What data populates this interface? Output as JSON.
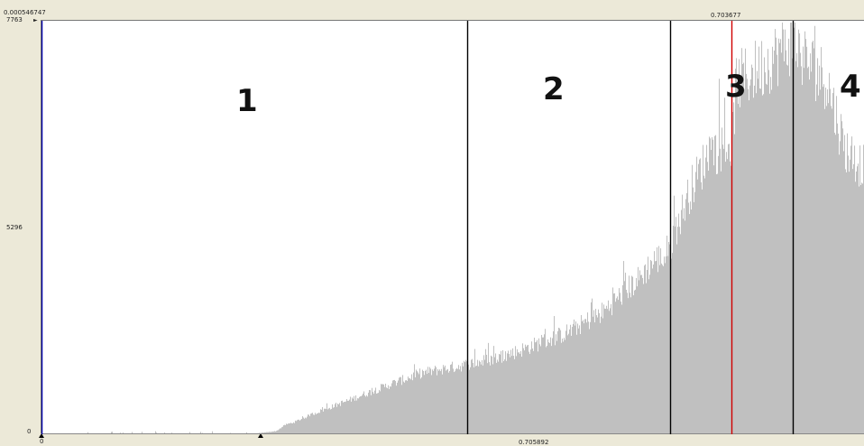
{
  "top_left_value": "0.000546747",
  "top_threshold_value": "0.703677",
  "bottom_center_value": "0.705892",
  "chart_data": {
    "type": "bar",
    "y_ticks": [
      "7763",
      "5296",
      "0"
    ],
    "y_tick_values": [
      7763,
      5296,
      0
    ],
    "x_tick_labels": [
      "0"
    ],
    "ylim": [
      0,
      7763
    ],
    "x_bin_count": 913,
    "grid": false,
    "bar_color": "#c0c0c0",
    "region_labels": [
      "1",
      "2",
      "3",
      "4"
    ],
    "histogram_profile": {
      "description_units": "bin index (0-912) and count",
      "bins": [
        0,
        40,
        80,
        120,
        160,
        200,
        230,
        260,
        270,
        280,
        300,
        340,
        380,
        420,
        470,
        500,
        530,
        580,
        620,
        660,
        680,
        695,
        700,
        720,
        740,
        765,
        770,
        800,
        830,
        850,
        870,
        890,
        913
      ],
      "counts": [
        0,
        0,
        0,
        0,
        0,
        0,
        0,
        60,
        180,
        230,
        380,
        640,
        900,
        1150,
        1310,
        1420,
        1580,
        1900,
        2280,
        2900,
        3300,
        3350,
        3750,
        4650,
        5300,
        5520,
        6620,
        6950,
        7400,
        7000,
        6700,
        5400,
        5000
      ]
    },
    "vertical_markers": [
      {
        "bin": 0,
        "color": "#0000aa"
      },
      {
        "bin": 472,
        "color": "#000000"
      },
      {
        "bin": 697,
        "color": "#000000"
      },
      {
        "bin": 765,
        "color": "#d00000"
      },
      {
        "bin": 833,
        "color": "#000000"
      }
    ]
  }
}
